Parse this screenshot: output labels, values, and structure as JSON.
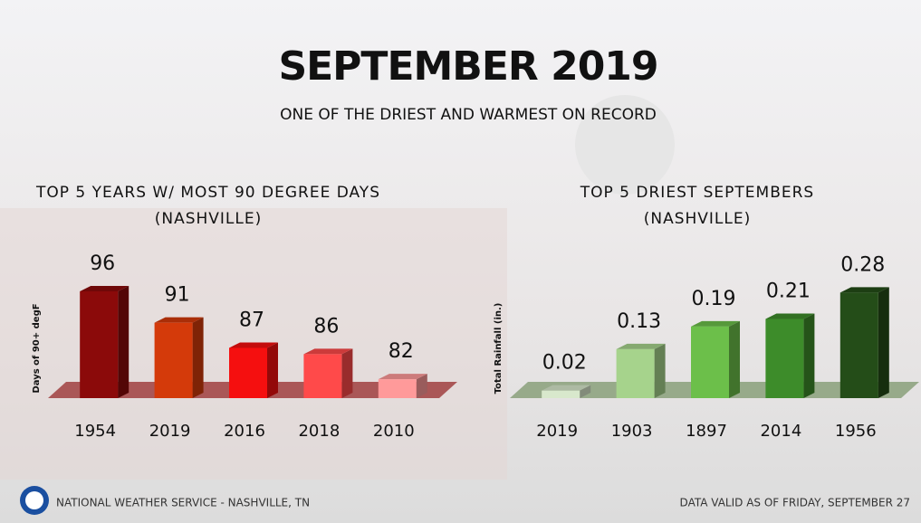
{
  "title": "SEPTEMBER 2019",
  "subtitle": "ONE OF THE DRIEST AND WARMEST ON RECORD",
  "footer_left": "NATIONAL WEATHER SERVICE - NASHVILLE, TN",
  "footer_right": "DATA VALID AS OF FRIDAY, SEPTEMBER 27",
  "chart_data": [
    {
      "type": "bar",
      "title": "TOP 5 YEARS W/ MOST 90 DEGREE DAYS",
      "subtitle": "(NASHVILLE)",
      "y_label": "Days of 90+ degF",
      "categories": [
        "1954",
        "2019",
        "2016",
        "2018",
        "2010"
      ],
      "values": [
        96,
        91,
        87,
        86,
        82
      ],
      "colors": [
        "#8b0a0a",
        "#d43a0a",
        "#f50f0f",
        "#ff4a4a",
        "#ff9a9a"
      ],
      "floor_color": "#a04040",
      "ylim": [
        79,
        97
      ]
    },
    {
      "type": "bar",
      "title": "TOP 5 DRIEST SEPTEMBERS",
      "subtitle": "(NASHVILLE)",
      "y_label": "Total Rainfall (in.)",
      "categories": [
        "2019",
        "1903",
        "1897",
        "2014",
        "1956"
      ],
      "values": [
        0.02,
        0.13,
        0.19,
        0.21,
        0.28
      ],
      "colors": [
        "#d8e8cc",
        "#a6d38c",
        "#6cbf4a",
        "#3d8c2a",
        "#244d18"
      ],
      "floor_color": "#8aa07a",
      "ylim": [
        0,
        0.3
      ]
    }
  ]
}
